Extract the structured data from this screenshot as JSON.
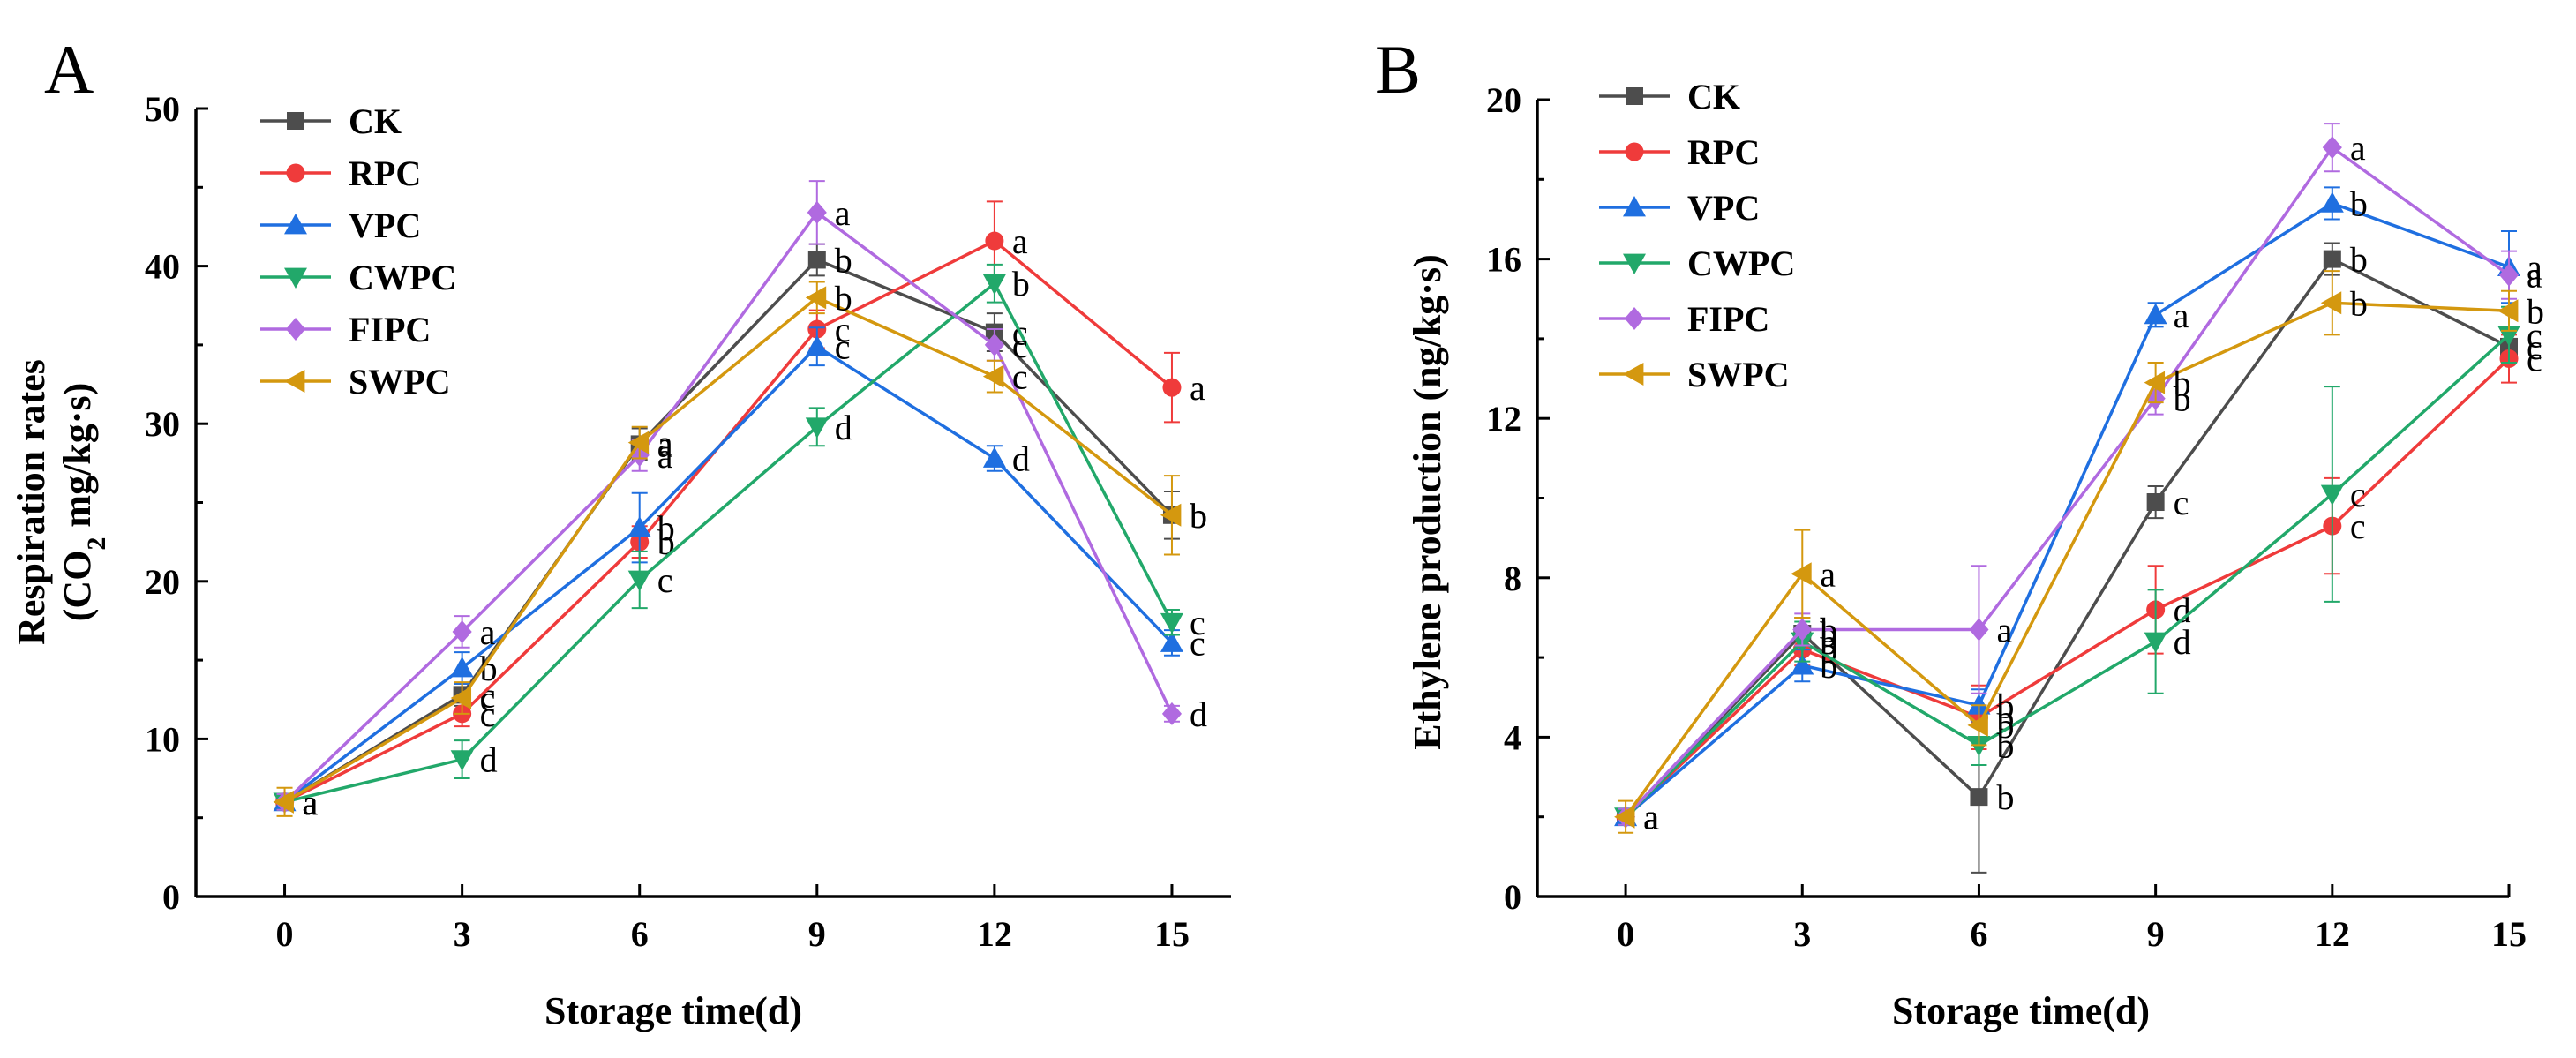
{
  "colors": {
    "CK": "#4d4d4d",
    "RPC": "#ef3b3b",
    "VPC": "#1f6fe0",
    "CWPC": "#22a86a",
    "FIPC": "#b06ae0",
    "SWPC": "#d4980f"
  },
  "markers": {
    "CK": "square",
    "RPC": "circle",
    "VPC": "triangle-up",
    "CWPC": "triangle-down",
    "FIPC": "diamond",
    "SWPC": "triangle-left"
  },
  "chart_data": [
    {
      "panel": "A",
      "type": "line",
      "xlabel": "Storage time(d)",
      "ylabel_line1": "Respiration rates",
      "ylabel_line2_pre": "(CO",
      "ylabel_line2_sub": "2",
      "ylabel_line2_post": " mg/kg·s)",
      "x": [
        0,
        3,
        6,
        9,
        12,
        15
      ],
      "xlim": [
        -1.5,
        16
      ],
      "ylim": [
        0,
        50
      ],
      "xticks": [
        0,
        3,
        6,
        9,
        12,
        15
      ],
      "yticks": [
        0,
        10,
        20,
        30,
        40,
        50
      ],
      "series": [
        {
          "name": "CK",
          "values": [
            6.0,
            12.8,
            28.7,
            40.4,
            35.8,
            24.2
          ],
          "errors": [
            0.5,
            0.7,
            1.0,
            1.0,
            1.2,
            1.5
          ],
          "labels": [
            "a",
            "c",
            "a",
            "b",
            "c",
            "b"
          ]
        },
        {
          "name": "RPC",
          "values": [
            6.0,
            11.6,
            22.5,
            36.0,
            41.6,
            32.3
          ],
          "errors": [
            0.5,
            0.8,
            1.0,
            1.2,
            2.5,
            2.2
          ],
          "labels": [
            "a",
            "c",
            "b",
            "c",
            "a",
            "a"
          ]
        },
        {
          "name": "VPC",
          "values": [
            6.0,
            14.5,
            23.4,
            34.9,
            27.8,
            16.1
          ],
          "errors": [
            0.5,
            1.0,
            2.2,
            1.2,
            0.8,
            0.8
          ],
          "labels": [
            "a",
            "b",
            "b",
            "c",
            "d",
            "c"
          ]
        },
        {
          "name": "CWPC",
          "values": [
            6.0,
            8.7,
            20.1,
            29.8,
            38.9,
            17.4
          ],
          "errors": [
            0.5,
            1.2,
            1.8,
            1.2,
            1.2,
            0.8
          ],
          "labels": [
            "a",
            "d",
            "c",
            "d",
            "b",
            "c"
          ]
        },
        {
          "name": "FIPC",
          "values": [
            6.0,
            16.8,
            28.0,
            43.4,
            35.0,
            11.6
          ],
          "errors": [
            0.5,
            1.0,
            1.0,
            2.0,
            1.0,
            0.5
          ],
          "labels": [
            "a",
            "a",
            "a",
            "a",
            "c",
            "d"
          ]
        },
        {
          "name": "SWPC",
          "values": [
            6.0,
            12.6,
            28.8,
            38.0,
            33.0,
            24.2
          ],
          "errors": [
            0.9,
            1.0,
            1.0,
            1.0,
            1.0,
            2.5
          ],
          "labels": [
            "a",
            "c",
            "a",
            "b",
            "c",
            "b"
          ]
        }
      ]
    },
    {
      "panel": "B",
      "type": "line",
      "xlabel": "Storage time(d)",
      "ylabel": "Ethylene production (ng/kg·s)",
      "x": [
        0,
        3,
        6,
        9,
        12,
        15
      ],
      "xlim": [
        -1.5,
        15
      ],
      "ylim": [
        0,
        20
      ],
      "xticks": [
        0,
        3,
        6,
        9,
        12,
        15
      ],
      "yticks": [
        0,
        4,
        8,
        12,
        16,
        20
      ],
      "series": [
        {
          "name": "CK",
          "values": [
            2.0,
            6.6,
            2.5,
            9.9,
            16.0,
            13.8
          ],
          "errors": [
            0.2,
            0.4,
            1.9,
            0.4,
            0.4,
            0.4
          ],
          "labels": [
            "a",
            "b",
            "b",
            "c",
            "b",
            "c"
          ]
        },
        {
          "name": "RPC",
          "values": [
            2.0,
            6.2,
            4.5,
            7.2,
            9.3,
            13.5
          ],
          "errors": [
            0.2,
            0.4,
            0.8,
            1.1,
            1.2,
            0.6
          ],
          "labels": [
            "a",
            "b",
            "b",
            "d",
            "c",
            "c"
          ]
        },
        {
          "name": "VPC",
          "values": [
            2.0,
            5.8,
            4.8,
            14.6,
            17.4,
            15.8
          ],
          "errors": [
            0.2,
            0.4,
            0.4,
            0.3,
            0.4,
            0.9
          ],
          "labels": [
            "a",
            "b",
            "b",
            "a",
            "b",
            "a"
          ]
        },
        {
          "name": "CWPC",
          "values": [
            2.0,
            6.4,
            3.8,
            6.4,
            10.1,
            14.1
          ],
          "errors": [
            0.2,
            0.5,
            0.5,
            1.3,
            2.7,
            0.7
          ],
          "labels": [
            "a",
            "b",
            "b",
            "d",
            "c",
            "c"
          ]
        },
        {
          "name": "FIPC",
          "values": [
            2.0,
            6.7,
            6.7,
            12.5,
            18.8,
            15.6
          ],
          "errors": [
            0.2,
            0.4,
            1.6,
            0.4,
            0.6,
            0.6
          ],
          "labels": [
            "a",
            "b",
            "a",
            "b",
            "a",
            "a"
          ]
        },
        {
          "name": "SWPC",
          "values": [
            2.0,
            8.1,
            4.3,
            12.9,
            14.9,
            14.7
          ],
          "errors": [
            0.4,
            1.1,
            0.5,
            0.5,
            0.8,
            0.5
          ],
          "labels": [
            "a",
            "a",
            "b",
            "b",
            "b",
            "b"
          ]
        }
      ]
    }
  ]
}
